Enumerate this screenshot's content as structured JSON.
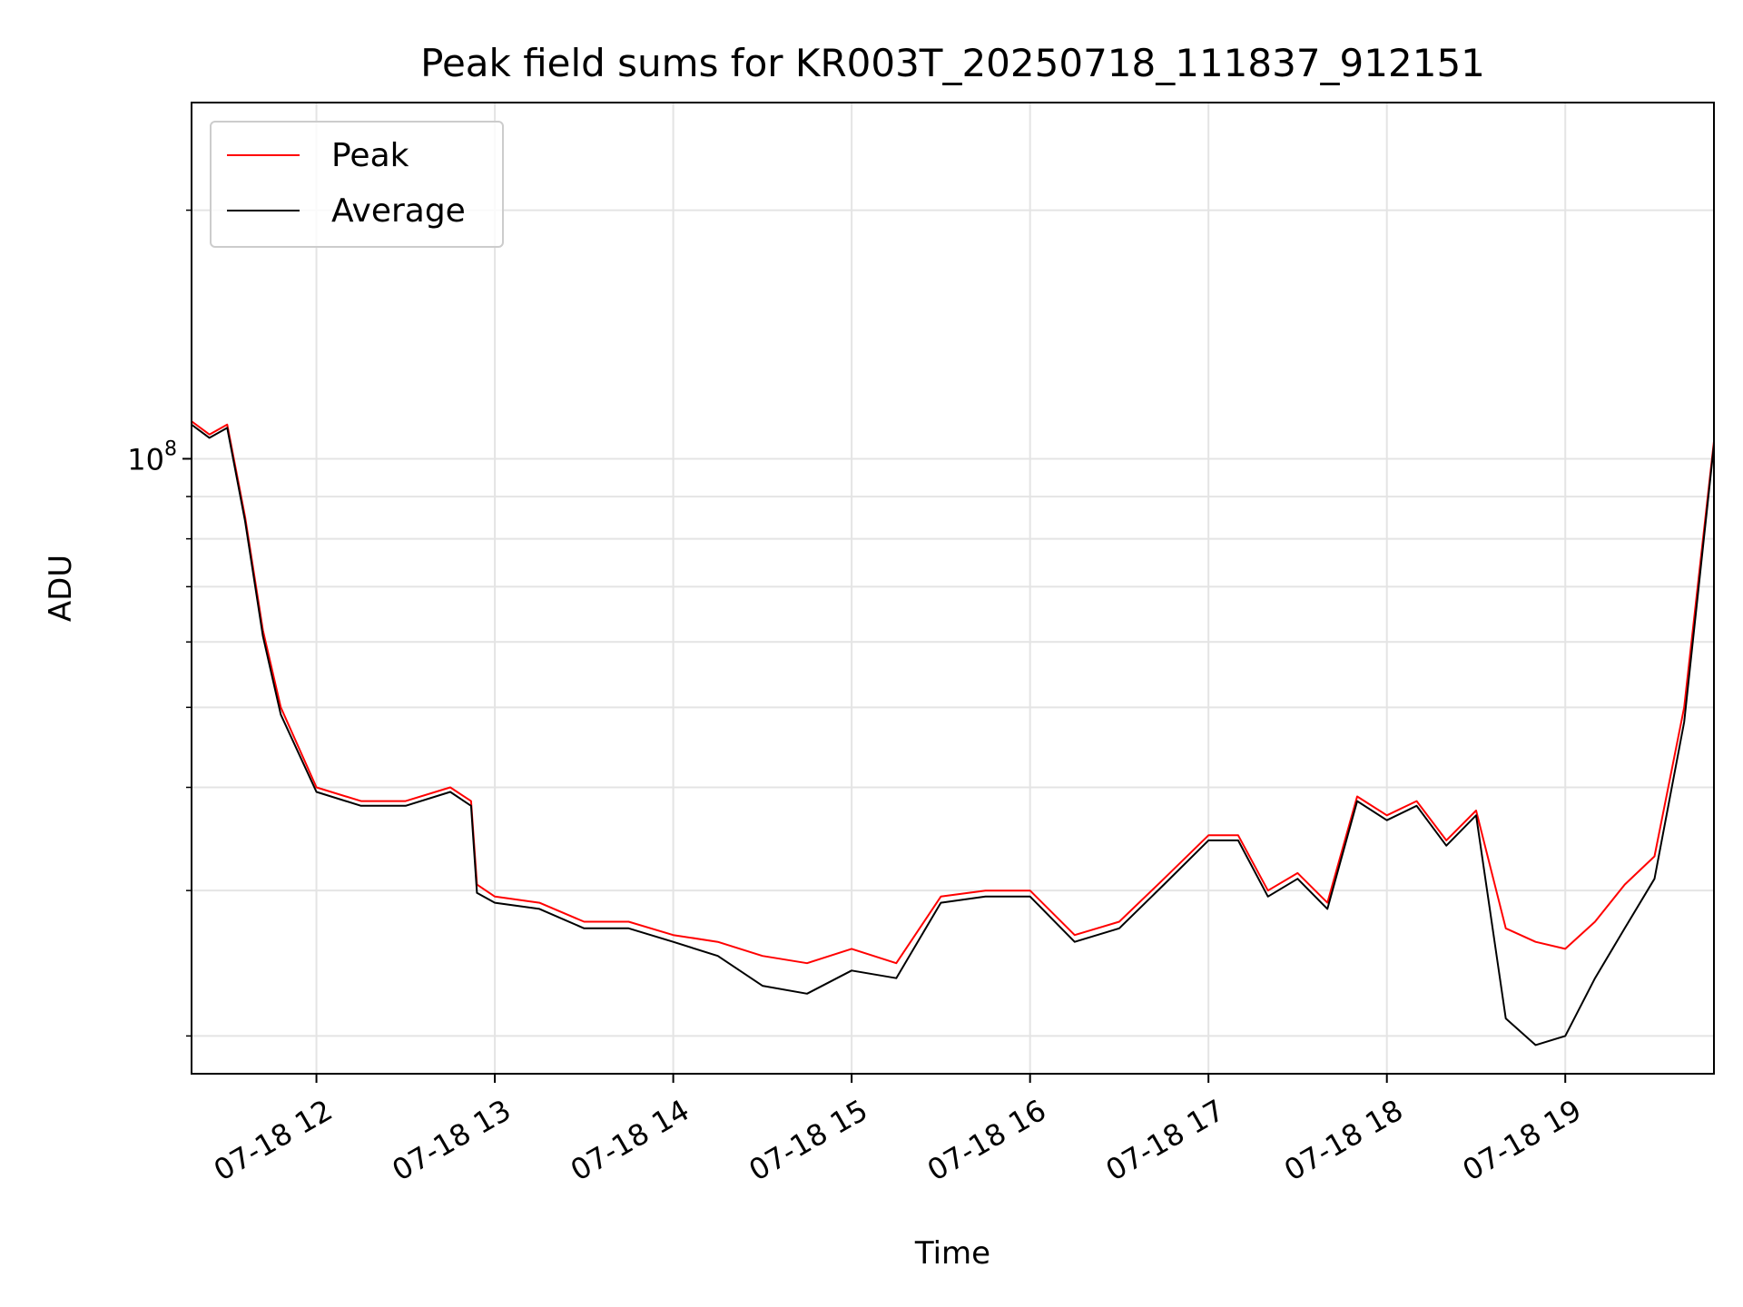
{
  "chart_data": {
    "type": "line",
    "title": "Peak field sums for KR003T_20250718_111837_912151",
    "xlabel": "Time",
    "ylabel": "ADU",
    "y_scale": "log",
    "ylim": [
      18000000,
      270000000
    ],
    "xlim": [
      "07-18 11:18",
      "07-18 19:50"
    ],
    "x_ticks": [
      "07-18 12",
      "07-18 13",
      "07-18 14",
      "07-18 15",
      "07-18 16",
      "07-18 17",
      "07-18 18",
      "07-18 19"
    ],
    "y_tick_label": "10^8",
    "grid": true,
    "legend_position": "top-left",
    "colors": {
      "Peak": "#ff0000",
      "Average": "#000000"
    },
    "series": [
      {
        "name": "Peak",
        "x": [
          "07-18 11:18",
          "07-18 11:24",
          "07-18 11:30",
          "07-18 11:36",
          "07-18 11:42",
          "07-18 11:48",
          "07-18 12:00",
          "07-18 12:15",
          "07-18 12:30",
          "07-18 12:45",
          "07-18 12:52",
          "07-18 12:54",
          "07-18 13:00",
          "07-18 13:15",
          "07-18 13:30",
          "07-18 13:45",
          "07-18 14:00",
          "07-18 14:15",
          "07-18 14:30",
          "07-18 14:45",
          "07-18 15:00",
          "07-18 15:15",
          "07-18 15:30",
          "07-18 15:45",
          "07-18 16:00",
          "07-18 16:15",
          "07-18 16:30",
          "07-18 16:45",
          "07-18 17:00",
          "07-18 17:10",
          "07-18 17:20",
          "07-18 17:30",
          "07-18 17:40",
          "07-18 17:50",
          "07-18 18:00",
          "07-18 18:10",
          "07-18 18:20",
          "07-18 18:30",
          "07-18 18:40",
          "07-18 18:50",
          "07-18 19:00",
          "07-18 19:10",
          "07-18 19:20",
          "07-18 19:30",
          "07-18 19:40",
          "07-18 19:50"
        ],
        "values": [
          111000000,
          107000000,
          110000000,
          85000000,
          62000000,
          50000000,
          40000000,
          38500000,
          38500000,
          40000000,
          38500000,
          30500000,
          29500000,
          29000000,
          27500000,
          27500000,
          26500000,
          26000000,
          25000000,
          24500000,
          25500000,
          24500000,
          29500000,
          30000000,
          30000000,
          26500000,
          27500000,
          31000000,
          35000000,
          35000000,
          30000000,
          31500000,
          29000000,
          39000000,
          37000000,
          38500000,
          34500000,
          37500000,
          27000000,
          26000000,
          25500000,
          27500000,
          30500000,
          33000000,
          50000000,
          105000000
        ]
      },
      {
        "name": "Average",
        "x": [
          "07-18 11:18",
          "07-18 11:24",
          "07-18 11:30",
          "07-18 11:36",
          "07-18 11:42",
          "07-18 11:48",
          "07-18 12:00",
          "07-18 12:15",
          "07-18 12:30",
          "07-18 12:45",
          "07-18 12:52",
          "07-18 12:54",
          "07-18 13:00",
          "07-18 13:15",
          "07-18 13:30",
          "07-18 13:45",
          "07-18 14:00",
          "07-18 14:15",
          "07-18 14:30",
          "07-18 14:45",
          "07-18 15:00",
          "07-18 15:15",
          "07-18 15:30",
          "07-18 15:45",
          "07-18 16:00",
          "07-18 16:15",
          "07-18 16:30",
          "07-18 16:45",
          "07-18 17:00",
          "07-18 17:10",
          "07-18 17:20",
          "07-18 17:30",
          "07-18 17:40",
          "07-18 17:50",
          "07-18 18:00",
          "07-18 18:10",
          "07-18 18:20",
          "07-18 18:30",
          "07-18 18:40",
          "07-18 18:50",
          "07-18 19:00",
          "07-18 19:10",
          "07-18 19:20",
          "07-18 19:30",
          "07-18 19:40",
          "07-18 19:50"
        ],
        "values": [
          110000000,
          106000000,
          109000000,
          84000000,
          61000000,
          49000000,
          39500000,
          38000000,
          38000000,
          39500000,
          38000000,
          29800000,
          29000000,
          28500000,
          27000000,
          27000000,
          26000000,
          25000000,
          23000000,
          22500000,
          24000000,
          23500000,
          29000000,
          29500000,
          29500000,
          26000000,
          27000000,
          30500000,
          34500000,
          34500000,
          29500000,
          31000000,
          28500000,
          38500000,
          36500000,
          38000000,
          34000000,
          37000000,
          21000000,
          19500000,
          20000000,
          23500000,
          27000000,
          31000000,
          48000000,
          104000000
        ]
      }
    ]
  }
}
